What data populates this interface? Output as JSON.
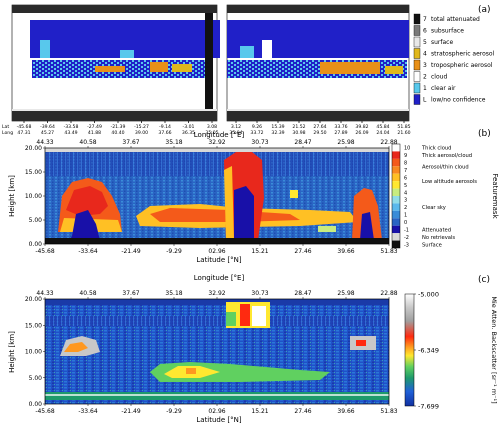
{
  "panel_a": {
    "label": "(a)",
    "left_lat_ticks": [
      "-45.68",
      "-39.64",
      "-33.58",
      "-27.49",
      "-21.39",
      "-15.27",
      "-9.14",
      "-3.01",
      "3.08"
    ],
    "left_lon_ticks": [
      "47.31",
      "45.27",
      "43.49",
      "41.88",
      "40.40",
      "39.00",
      "37.66",
      "36.35",
      "35.05"
    ],
    "right_lat_ticks": [
      "3.12",
      "9.26",
      "15.39",
      "21.52",
      "27.64",
      "33.76",
      "39.82",
      "45.84",
      "51.85"
    ],
    "right_lon_ticks": [
      "35.04",
      "33.72",
      "32.39",
      "30.98",
      "29.50",
      "27.89",
      "26.09",
      "24.04",
      "21.60"
    ],
    "lat_row_label": "Lat",
    "lon_row_label": "Long",
    "legend": [
      {
        "code": "7",
        "label": "total attenuated",
        "color": "#111111"
      },
      {
        "code": "6",
        "label": "subsurface",
        "color": "#7a7a7a"
      },
      {
        "code": "5",
        "label": "surface",
        "color": "#e8e8e8"
      },
      {
        "code": "4",
        "label": "stratospheric aerosol",
        "color": "#e0b81c"
      },
      {
        "code": "3",
        "label": "tropospheric aerosol",
        "color": "#e89018"
      },
      {
        "code": "2",
        "label": "cloud",
        "color": "#ffffff"
      },
      {
        "code": "1",
        "label": "clear air",
        "color": "#58c8ec"
      },
      {
        "code": "L",
        "label": "low/no confidence",
        "color": "#2020c8"
      }
    ]
  },
  "panel_b": {
    "label": "(b)",
    "chart_data": {
      "type": "heatmap",
      "x_axis_label": "Latitude [°N]",
      "top_axis_label": "Longitude [°E]",
      "y_axis_label": "Height [km]",
      "colorbar_label": "Featuremask",
      "x_ticks": [
        "-45.68",
        "-33.64",
        "-21.49",
        "-9.29",
        "02.96",
        "15.21",
        "27.46",
        "39.66",
        "51.83"
      ],
      "top_ticks": [
        "44.33",
        "40.58",
        "37.67",
        "35.18",
        "32.92",
        "30.73",
        "28.47",
        "25.98",
        "22.88"
      ],
      "y_ticks": [
        "0.00",
        "5.00",
        "10.00",
        "15.00",
        "20.00"
      ],
      "ylim": [
        0,
        20
      ],
      "colorbar_ticks": [
        "10",
        "9",
        "8",
        "7",
        "6",
        "5",
        "4",
        "3",
        "2",
        "1",
        "0",
        "-1",
        "-2",
        "-3"
      ],
      "colorbar_colors": [
        "#ffffff",
        "#e8281c",
        "#f45a1a",
        "#f88a20",
        "#ffc024",
        "#ffe830",
        "#c8ec80",
        "#90dce8",
        "#5ab8ec",
        "#3a8cd8",
        "#2a64c4",
        "#1810a8",
        "#d8d8d8",
        "#101010"
      ],
      "category_labels": [
        "Thick cloud",
        "Thick aerosol/cloud",
        "Aerosol/thin cloud",
        "Low altitude aerosols",
        "Clear sky",
        "Attenuated",
        "No retrievals",
        "Surface"
      ]
    }
  },
  "panel_c": {
    "label": "(c)",
    "chart_data": {
      "type": "heatmap",
      "x_axis_label": "Latitude [°N]",
      "top_axis_label": "Longitude [°E]",
      "y_axis_label": "Height [km]",
      "colorbar_label": "Mie Atten. Backscatter [sr⁻¹ m⁻¹]",
      "x_ticks": [
        "-45.68",
        "-33.64",
        "-21.49",
        "-9.29",
        "02.96",
        "15.21",
        "27.46",
        "39.66",
        "51.83"
      ],
      "top_ticks": [
        "44.33",
        "40.58",
        "37.67",
        "35.18",
        "32.92",
        "30.73",
        "28.47",
        "25.98",
        "22.88"
      ],
      "y_ticks": [
        "0.00",
        "5.00",
        "10.00",
        "15.00",
        "20.00"
      ],
      "ylim": [
        0,
        20
      ],
      "colorbar_ticks": [
        "-5.000",
        "-6.349",
        "-7.699"
      ],
      "colorbar_stops": [
        "#ffffff",
        "#c8c8c8",
        "#a0a0a0",
        "#ff2a10",
        "#ff9820",
        "#ffe830",
        "#60d060",
        "#1e9a6c",
        "#2060d8",
        "#1030a0"
      ]
    }
  }
}
